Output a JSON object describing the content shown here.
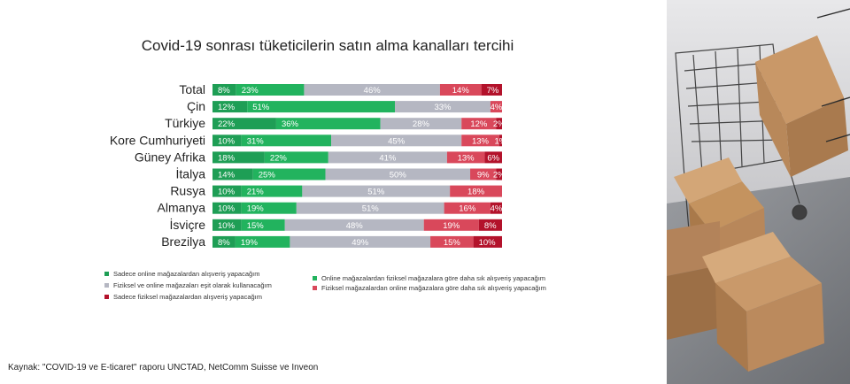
{
  "title": "Covid-19 sonrası tüketicilerin satın alma kanalları tercihi",
  "source": "Kaynak: \"COVID-19 ve E-ticaret\" raporu UNCTAD, NetComm Suisse ve Inveon",
  "colors": {
    "only_online": "#1e9e55",
    "more_online": "#22b35e",
    "equal": "#b5b7c2",
    "more_physical": "#d9485b",
    "only_physical": "#b3122b"
  },
  "legend": [
    {
      "label": "Sadece online mağazalardan alışveriş yapacağım",
      "color": "#1e9e55"
    },
    {
      "label": "Online mağazalardan fiziksel mağazalara göre daha sık alışveriş yapacağım",
      "color": "#22b35e"
    },
    {
      "label": "Fiziksel ve online mağazaları eşit olarak kullanacağım",
      "color": "#b5b7c2"
    },
    {
      "label": "Fiziksel mağazalardan online mağazalara göre daha sık alışveriş yapacağım",
      "color": "#d9485b"
    },
    {
      "label": "Sadece fiziksel mağazalardan alışveriş yapacağım",
      "color": "#b3122b"
    }
  ],
  "chart_data": {
    "type": "bar",
    "orientation": "horizontal",
    "stacked": true,
    "title": "Covid-19 sonrası tüketicilerin satın alma kanalları tercihi",
    "categories": [
      "Total",
      "Çin",
      "Türkiye",
      "Kore Cumhuriyeti",
      "Güney Afrika",
      "İtalya",
      "Rusya",
      "Almanya",
      "İsviçre",
      "Brezilya"
    ],
    "series": [
      {
        "name": "Sadece online mağazalardan alışveriş yapacağım",
        "color": "#1e9e55",
        "values": [
          8,
          12,
          22,
          10,
          18,
          14,
          10,
          10,
          10,
          8
        ]
      },
      {
        "name": "Online mağazalardan fiziksel mağazalara göre daha sık alışveriş yapacağım",
        "color": "#22b35e",
        "values": [
          23,
          51,
          36,
          31,
          22,
          25,
          21,
          19,
          15,
          19
        ]
      },
      {
        "name": "Fiziksel ve online mağazaları eşit olarak kullanacağım",
        "color": "#b5b7c2",
        "values": [
          46,
          33,
          28,
          45,
          41,
          50,
          51,
          51,
          48,
          49
        ]
      },
      {
        "name": "Fiziksel mağazalardan online mağazalara göre daha sık alışveriş yapacağım",
        "color": "#d9485b",
        "values": [
          14,
          4,
          12,
          13,
          13,
          9,
          18,
          16,
          19,
          15
        ]
      },
      {
        "name": "Sadece fiziksel mağazalardan alışveriş yapacağım",
        "color": "#b3122b",
        "values": [
          7,
          0,
          2,
          1,
          6,
          2,
          0,
          4,
          8,
          10
        ]
      }
    ],
    "xlim": [
      0,
      100
    ],
    "grid": false,
    "legend_position": "bottom"
  }
}
